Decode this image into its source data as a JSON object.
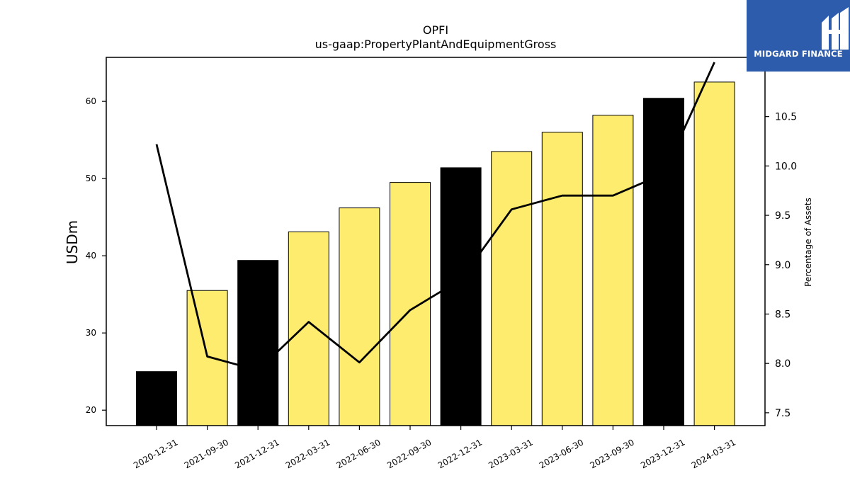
{
  "chart_data": {
    "type": "bar",
    "title": "OPFI",
    "subtitle": "us-gaap:PropertyPlantAndEquipmentGross",
    "ylabel": "USDm",
    "y2label": "Percentage of Assets",
    "categories": [
      "2020-12-31",
      "2021-09-30",
      "2021-12-31",
      "2022-03-31",
      "2022-06-30",
      "2022-09-30",
      "2022-12-31",
      "2023-03-31",
      "2023-06-30",
      "2023-09-30",
      "2023-12-31",
      "2024-03-31"
    ],
    "series": [
      {
        "kind": "bar",
        "axis": "left",
        "values": [
          25.0,
          35.5,
          39.4,
          43.1,
          46.2,
          49.5,
          51.4,
          53.5,
          56.0,
          58.2,
          60.4,
          62.5
        ],
        "colors": [
          "#000000",
          "#feec6e",
          "#000000",
          "#feec6e",
          "#feec6e",
          "#feec6e",
          "#000000",
          "#feec6e",
          "#feec6e",
          "#feec6e",
          "#000000",
          "#feec6e"
        ]
      },
      {
        "kind": "line",
        "axis": "right",
        "color": "#000000",
        "values": [
          10.22,
          8.07,
          7.93,
          8.42,
          8.01,
          8.54,
          8.85,
          9.56,
          9.7,
          9.7,
          9.92,
          11.05
        ]
      }
    ],
    "ylim": [
      18,
      65.7
    ],
    "y2lim": [
      7.37,
      11.1
    ],
    "yticks": [
      20,
      30,
      40,
      50,
      60
    ],
    "y2ticks": [
      "7.5",
      "8.0",
      "8.5",
      "9.0",
      "9.5",
      "10.0",
      "10.5"
    ],
    "grid": false,
    "legend": "none"
  },
  "logo": {
    "text": "MIDGARD FINANCE"
  }
}
